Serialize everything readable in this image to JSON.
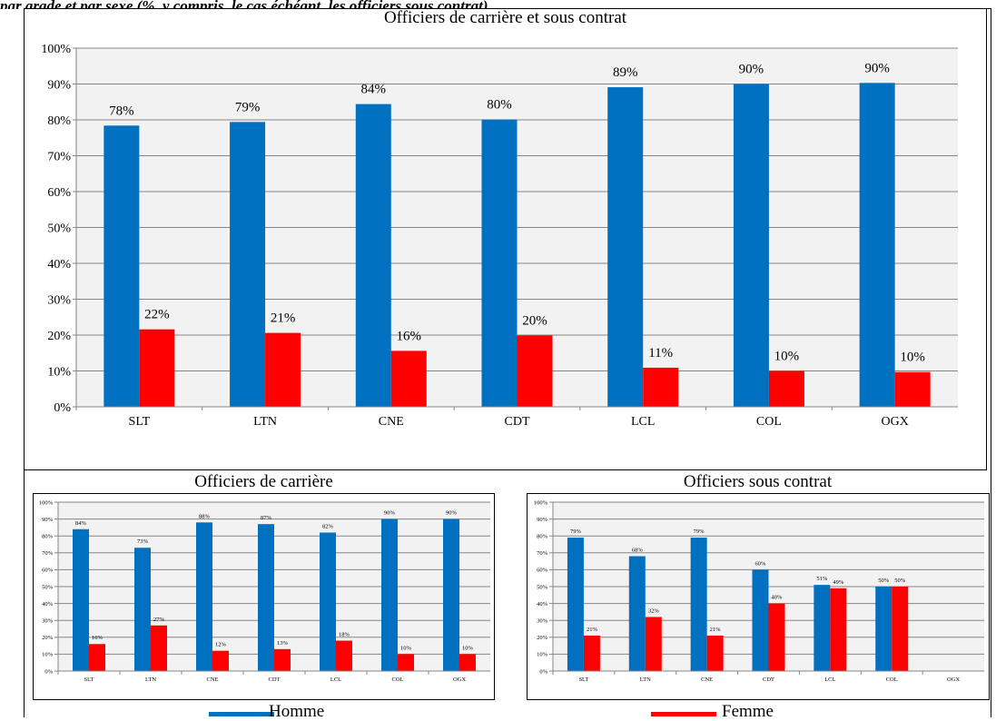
{
  "header_fragment": "par grade et par sexe (%, y compris, le cas échéant, les officiers sous contrat)",
  "colors": {
    "homme": "#0070C0",
    "femme": "#FF0000",
    "plot_bg": "#F2F2F2"
  },
  "legend": [
    {
      "label": "Homme",
      "color": "#0070C0"
    },
    {
      "label": "Femme",
      "color": "#FF0000"
    }
  ],
  "chart_data": [
    {
      "type": "bar",
      "title": "Officiers de carrière et sous contrat",
      "categories": [
        "SLT",
        "LTN",
        "CNE",
        "CDT",
        "LCL",
        "COL",
        "OGX"
      ],
      "ylim": [
        0,
        100
      ],
      "yticks": [
        "0%",
        "10%",
        "20%",
        "30%",
        "40%",
        "50%",
        "60%",
        "70%",
        "80%",
        "90%",
        "100%"
      ],
      "grid": true,
      "series": [
        {
          "name": "Homme",
          "values": [
            78.4,
            79.4,
            84.4,
            80.1,
            89.1,
            90.0,
            90.3
          ],
          "labels": [
            "78%",
            "79%",
            "84%",
            "80%",
            "89%",
            "90%",
            "90%"
          ]
        },
        {
          "name": "Femme",
          "values": [
            21.6,
            20.6,
            15.6,
            19.9,
            10.9,
            10.0,
            9.7
          ],
          "labels": [
            "22%",
            "21%",
            "16%",
            "20%",
            "11%",
            "10%",
            "10%"
          ]
        }
      ]
    },
    {
      "type": "bar",
      "title": "Officiers de carrière",
      "categories": [
        "SLT",
        "LTN",
        "CNE",
        "CDT",
        "LCL",
        "COL",
        "OGX"
      ],
      "ylim": [
        0,
        100
      ],
      "yticks": [
        "0%",
        "10%",
        "20%",
        "30%",
        "40%",
        "50%",
        "60%",
        "70%",
        "80%",
        "90%",
        "100%"
      ],
      "grid": true,
      "series": [
        {
          "name": "Homme",
          "values": [
            84,
            73,
            88,
            87,
            82,
            90,
            90
          ],
          "labels": [
            "84%",
            "73%",
            "88%",
            "87%",
            "82%",
            "90%",
            "90%"
          ]
        },
        {
          "name": "Femme",
          "values": [
            16,
            27,
            12,
            13,
            18,
            10,
            10
          ],
          "labels": [
            "16%",
            "27%",
            "12%",
            "13%",
            "18%",
            "10%",
            "10%"
          ]
        }
      ]
    },
    {
      "type": "bar",
      "title": "Officiers sous contrat",
      "categories": [
        "SLT",
        "LTN",
        "CNE",
        "CDT",
        "LCL",
        "COL",
        "OGX"
      ],
      "ylim": [
        0,
        100
      ],
      "yticks": [
        "0%",
        "10%",
        "20%",
        "30%",
        "40%",
        "50%",
        "60%",
        "70%",
        "80%",
        "90%",
        "100%"
      ],
      "grid": true,
      "series": [
        {
          "name": "Homme",
          "values": [
            79,
            68,
            79,
            60,
            51,
            50,
            null
          ],
          "labels": [
            "79%",
            "68%",
            "79%",
            "60%",
            "51%",
            "50%",
            ""
          ]
        },
        {
          "name": "Femme",
          "values": [
            21,
            32,
            21,
            40,
            49,
            50,
            null
          ],
          "labels": [
            "21%",
            "32%",
            "21%",
            "40%",
            "49%",
            "50%",
            ""
          ]
        }
      ]
    }
  ]
}
